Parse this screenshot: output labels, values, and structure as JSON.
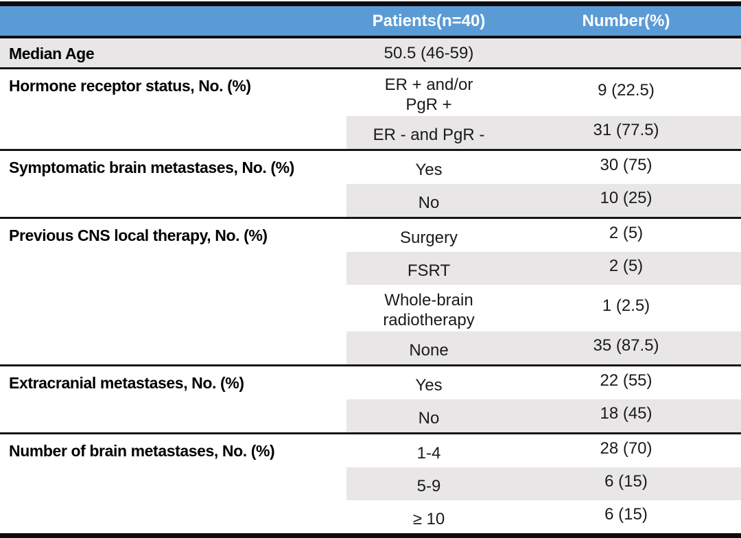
{
  "table": {
    "header": {
      "patients": "Patients(n=40)",
      "number": "Number(%)"
    },
    "sections": [
      {
        "label": "Median Age",
        "rows": [
          {
            "value": "50.5 (46-59)",
            "number": ""
          }
        ]
      },
      {
        "label": "Hormone receptor status, No. (%)",
        "rows": [
          {
            "value": "ER + and/or\nPgR +",
            "number": "9 (22.5)"
          },
          {
            "value": "ER - and PgR -",
            "number": "31 (77.5)"
          }
        ]
      },
      {
        "label": "Symptomatic brain metastases, No. (%)",
        "rows": [
          {
            "value": "Yes",
            "number": "30 (75)"
          },
          {
            "value": "No",
            "number": "10 (25)"
          }
        ]
      },
      {
        "label": "Previous CNS local therapy, No. (%)",
        "rows": [
          {
            "value": "Surgery",
            "number": "2 (5)"
          },
          {
            "value": "FSRT",
            "number": "2 (5)"
          },
          {
            "value": "Whole-brain\nradiotherapy",
            "number": "1 (2.5)"
          },
          {
            "value": "None",
            "number": "35 (87.5)"
          }
        ]
      },
      {
        "label": "Extracranial metastases, No. (%)",
        "rows": [
          {
            "value": "Yes",
            "number": "22 (55)"
          },
          {
            "value": "No",
            "number": "18 (45)"
          }
        ]
      },
      {
        "label": "Number of brain metastases, No. (%)",
        "rows": [
          {
            "value": "1-4",
            "number": "28 (70)"
          },
          {
            "value": "5-9",
            "number": "6 (15)"
          },
          {
            "value": "≥ 10",
            "number": "6 (15)"
          }
        ]
      }
    ],
    "colors": {
      "header_bg": "#5B9BD5",
      "header_text": "#FFFFFF",
      "row_shade": "#E8E6E6",
      "rule": "#0D0D0D"
    }
  }
}
